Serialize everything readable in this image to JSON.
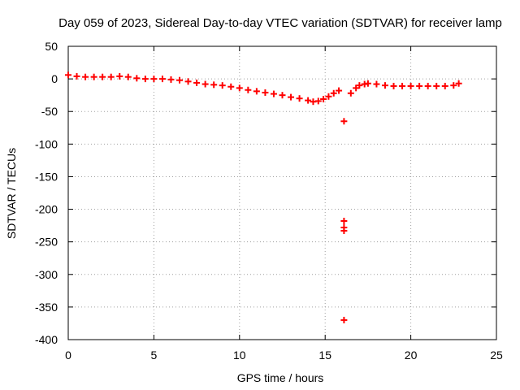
{
  "chart_data": {
    "type": "scatter",
    "title": "Day 059 of 2023, Sidereal Day-to-day VTEC variation (SDTVAR) for receiver lamp",
    "xlabel": "GPS time / hours",
    "ylabel": "SDTVAR / TECUs",
    "xlim": [
      0,
      25
    ],
    "ylim": [
      -400,
      50
    ],
    "x_ticks": [
      0,
      5,
      10,
      15,
      20,
      25
    ],
    "x_tick_labels": [
      "0",
      "5",
      "10",
      "15",
      "20",
      "25"
    ],
    "y_ticks": [
      50,
      0,
      -50,
      -100,
      -150,
      -200,
      -250,
      -300,
      -350,
      -400
    ],
    "y_tick_labels": [
      "50",
      "0",
      "-50",
      "-100",
      "-150",
      "-200",
      "-250",
      "-300",
      "-350",
      "-400"
    ],
    "grid": true,
    "marker": "plus",
    "series": [
      {
        "name": "SDTVAR",
        "color": "#ff0000",
        "x": [
          0.0,
          0.5,
          1.0,
          1.5,
          2.0,
          2.5,
          3.0,
          3.5,
          4.0,
          4.5,
          5.0,
          5.5,
          6.0,
          6.5,
          7.0,
          7.5,
          8.0,
          8.5,
          9.0,
          9.5,
          10.0,
          10.5,
          11.0,
          11.5,
          12.0,
          12.5,
          13.0,
          13.5,
          14.0,
          14.3,
          14.6,
          14.9,
          15.2,
          15.5,
          15.8,
          16.1,
          16.1,
          16.1,
          16.1,
          16.1,
          16.5,
          16.8,
          17.0,
          17.3,
          17.5,
          18.0,
          18.5,
          19.0,
          19.5,
          20.0,
          20.5,
          21.0,
          21.5,
          22.0,
          22.5,
          22.8
        ],
        "y": [
          6,
          4,
          3,
          3,
          3,
          3,
          4,
          3,
          1,
          0,
          0,
          0,
          -1,
          -2,
          -4,
          -6,
          -8,
          -9,
          -10,
          -12,
          -14,
          -17,
          -19,
          -21,
          -23,
          -25,
          -28,
          -30,
          -33,
          -35,
          -34,
          -31,
          -27,
          -22,
          -18,
          -65,
          -218,
          -228,
          -233,
          -370,
          -22,
          -14,
          -10,
          -8,
          -7,
          -8,
          -10,
          -11,
          -11,
          -11,
          -11,
          -11,
          -11,
          -11,
          -10,
          -7
        ]
      }
    ]
  }
}
